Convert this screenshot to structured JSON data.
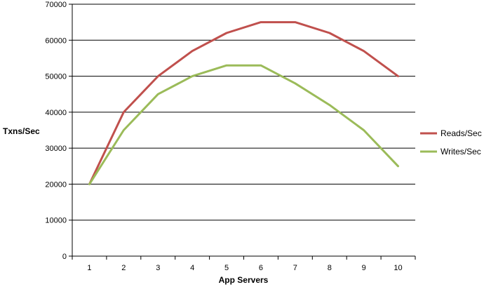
{
  "chart_data": {
    "type": "line",
    "title": "",
    "xlabel": "App Servers",
    "ylabel": "Txns/Sec",
    "x": [
      1,
      2,
      3,
      4,
      5,
      6,
      7,
      8,
      9,
      10
    ],
    "ylim": [
      0,
      70000
    ],
    "yticks": [
      0,
      10000,
      20000,
      30000,
      40000,
      50000,
      60000,
      70000
    ],
    "grid": "horizontal",
    "legend_position": "right",
    "series": [
      {
        "name": "Reads/Sec",
        "color": "#c0504d",
        "values": [
          20000,
          40000,
          50000,
          57000,
          62000,
          65000,
          65000,
          62000,
          57000,
          50000
        ]
      },
      {
        "name": "Writes/Sec",
        "color": "#9bbb59",
        "values": [
          20000,
          35000,
          45000,
          50000,
          53000,
          53000,
          48000,
          42000,
          35000,
          25000
        ]
      }
    ]
  }
}
